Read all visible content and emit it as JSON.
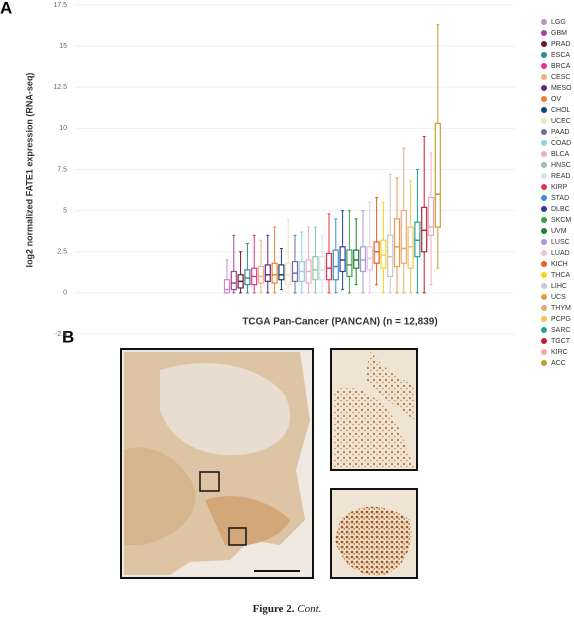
{
  "chart_data": {
    "type": "box",
    "ylabel": "log2 normalized FATE1 expression (RNA-seq)",
    "xlabel": "TCGA Pan-Cancer (PANCAN) (n = 12,839)",
    "ylim": [
      -2.5,
      17.5
    ],
    "yticks": [
      -2.5,
      0,
      2.5,
      5,
      7.5,
      10,
      12.5,
      15,
      17.5
    ],
    "grid": true,
    "legend": "right",
    "categories": [
      "LGG",
      "GBM",
      "PRAD",
      "ESCA",
      "BRCA",
      "CESC",
      "MESO",
      "OV",
      "CHOL",
      "UCEC",
      "PAAD",
      "COAD",
      "BLCA",
      "HNSC",
      "READ",
      "KIRP",
      "STAD",
      "DLBC",
      "SKCM",
      "UVM",
      "LUSC",
      "LUAD",
      "KICH",
      "THCA",
      "LIHC",
      "UCS",
      "THYM",
      "PCPG",
      "SARC",
      "TGCT",
      "KIRC",
      "ACC"
    ],
    "colors": [
      "#c98bc9",
      "#a0459c",
      "#6b1a2e",
      "#2a8a96",
      "#e0338a",
      "#f2b07a",
      "#5b2a86",
      "#f07f2a",
      "#1f3f6e",
      "#f3e2bc",
      "#6a6fa8",
      "#8fcfe8",
      "#f4a8c8",
      "#8ec9a0",
      "#d4e4ee",
      "#e8334a",
      "#3a8fd0",
      "#2a3f9a",
      "#3aa04a",
      "#1e7f3a",
      "#a89ad8",
      "#e8c4e0",
      "#e8601a",
      "#f7d520",
      "#c8c8c8",
      "#e89a4a",
      "#e8a878",
      "#f5c050",
      "#20a0a0",
      "#c02030",
      "#f0a8b8",
      "#c0a030"
    ],
    "boxes": [
      {
        "min": 0,
        "q1": 0,
        "median": 0.2,
        "q3": 0.8,
        "max": 2
      },
      {
        "min": 0,
        "q1": 0.2,
        "median": 0.6,
        "q3": 1.3,
        "max": 3.5
      },
      {
        "min": 0,
        "q1": 0.3,
        "median": 0.7,
        "q3": 1.1,
        "max": 2.5
      },
      {
        "min": 0,
        "q1": 0.5,
        "median": 0.9,
        "q3": 1.4,
        "max": 3
      },
      {
        "min": 0,
        "q1": 0.5,
        "median": 1,
        "q3": 1.5,
        "max": 3.5
      },
      {
        "min": 0,
        "q1": 0.6,
        "median": 1,
        "q3": 1.6,
        "max": 3.2
      },
      {
        "min": 0,
        "q1": 0.7,
        "median": 1.1,
        "q3": 1.7,
        "max": 3.5
      },
      {
        "min": 0,
        "q1": 0.6,
        "median": 1.1,
        "q3": 1.8,
        "max": 4
      },
      {
        "min": 0.2,
        "q1": 0.8,
        "median": 1.1,
        "q3": 1.7,
        "max": 2.7
      },
      {
        "min": 0,
        "q1": 0.5,
        "median": 1.1,
        "q3": 1.8,
        "max": 4.5
      },
      {
        "min": 0,
        "q1": 0.7,
        "median": 1.2,
        "q3": 1.9,
        "max": 3.5
      },
      {
        "min": 0,
        "q1": 0.7,
        "median": 1.3,
        "q3": 1.9,
        "max": 3.7
      },
      {
        "min": 0,
        "q1": 0.6,
        "median": 1.3,
        "q3": 2,
        "max": 4
      },
      {
        "min": 0,
        "q1": 0.8,
        "median": 1.4,
        "q3": 2.2,
        "max": 4
      },
      {
        "min": 0,
        "q1": 0.8,
        "median": 1.4,
        "q3": 2.2,
        "max": 3.5
      },
      {
        "min": 0,
        "q1": 0.8,
        "median": 1.5,
        "q3": 2.4,
        "max": 4.8
      },
      {
        "min": 0,
        "q1": 0.8,
        "median": 1.6,
        "q3": 2.6,
        "max": 4.5
      },
      {
        "min": 0.2,
        "q1": 1.3,
        "median": 2,
        "q3": 2.8,
        "max": 5
      },
      {
        "min": 0,
        "q1": 1,
        "median": 1.7,
        "q3": 2.6,
        "max": 5
      },
      {
        "min": 0.5,
        "q1": 1.5,
        "median": 2,
        "q3": 2.6,
        "max": 4.5
      },
      {
        "min": 0,
        "q1": 1.3,
        "median": 2,
        "q3": 2.8,
        "max": 5
      },
      {
        "min": 0,
        "q1": 1.4,
        "median": 2.1,
        "q3": 2.8,
        "max": 5.5
      },
      {
        "min": 0.5,
        "q1": 1.8,
        "median": 2.5,
        "q3": 3.1,
        "max": 5.8
      },
      {
        "min": 0,
        "q1": 1.5,
        "median": 2.3,
        "q3": 3.2,
        "max": 5.5
      },
      {
        "min": 0,
        "q1": 1,
        "median": 2.2,
        "q3": 3.5,
        "max": 7.2
      },
      {
        "min": 0,
        "q1": 1.6,
        "median": 2.8,
        "q3": 4.5,
        "max": 7
      },
      {
        "min": 0,
        "q1": 1.8,
        "median": 2.7,
        "q3": 5,
        "max": 8.8
      },
      {
        "min": 0,
        "q1": 1.5,
        "median": 2.8,
        "q3": 4,
        "max": 6.8
      },
      {
        "min": 0,
        "q1": 2.2,
        "median": 3.2,
        "q3": 4.3,
        "max": 7.5
      },
      {
        "min": 0,
        "q1": 2.5,
        "median": 3.8,
        "q3": 5.2,
        "max": 9.5
      },
      {
        "min": 0.5,
        "q1": 3.5,
        "median": 4,
        "q3": 5.8,
        "max": 8.5
      },
      {
        "min": 1.5,
        "q1": 4,
        "median": 6,
        "q3": 10.3,
        "max": 16.3
      }
    ]
  },
  "figure": {
    "panel_a": "A",
    "panel_b": "B",
    "caption_label": "Figure 2.",
    "caption_text": "Cont."
  }
}
